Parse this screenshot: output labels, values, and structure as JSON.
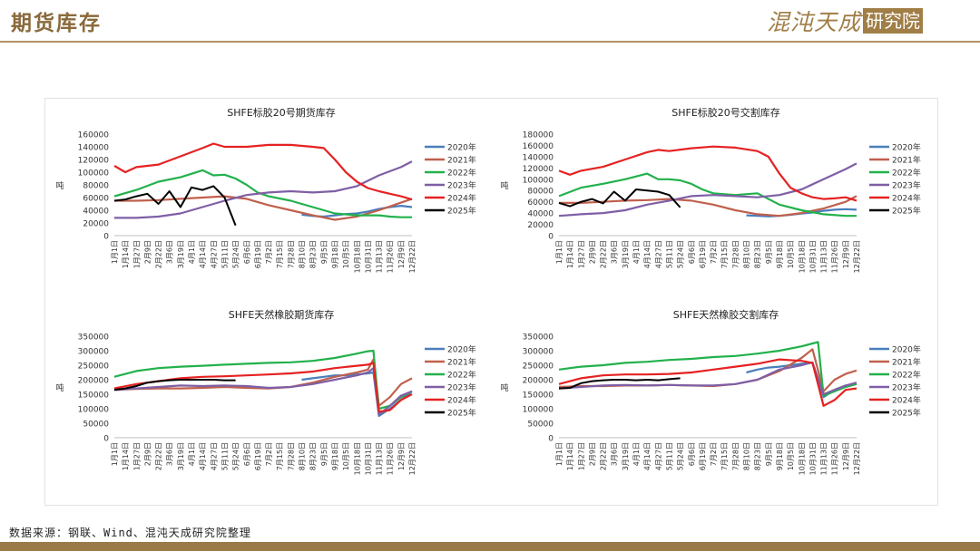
{
  "page": {
    "title": "期货库存",
    "logo_text": "混沌天成",
    "logo_box_text": "研究院",
    "source": "数据来源：钢联、Wind、混沌天成研究院整理"
  },
  "colors": {
    "2020年": "#4a7ebb",
    "2021年": "#c0604d",
    "2022年": "#22b14c",
    "2023年": "#7f5fa5",
    "2024年": "#e52222",
    "2025年": "#000000"
  },
  "chart_data": [
    {
      "type": "line",
      "title": "SHFE标胶20号期货库存",
      "ylabel": "吨",
      "ylim": [
        0,
        160000
      ],
      "yticks": [
        0,
        20000,
        40000,
        60000,
        80000,
        100000,
        120000,
        140000,
        160000
      ],
      "categories": [
        "1月1日",
        "1月14日",
        "1月27日",
        "2月9日",
        "2月22日",
        "3月6日",
        "3月19日",
        "4月1日",
        "4月14日",
        "4月27日",
        "5月11日",
        "5月24日",
        "6月6日",
        "6月19日",
        "7月2日",
        "7月15日",
        "7月28日",
        "8月10日",
        "8月23日",
        "9月5日",
        "9月18日",
        "10月5日",
        "10月18日",
        "10月31日",
        "11月13日",
        "11月26日",
        "12月9日",
        "12月22日"
      ],
      "series": [
        {
          "name": "2020年",
          "x": [
            17,
            18,
            19,
            20,
            21,
            22,
            23,
            24,
            25,
            26,
            27
          ],
          "values": [
            33000,
            31000,
            30000,
            32000,
            34000,
            35000,
            38000,
            42000,
            45000,
            47000,
            45000
          ]
        },
        {
          "name": "2021年",
          "x": [
            0,
            2,
            4,
            6,
            8,
            10,
            12,
            14,
            16,
            18,
            20,
            22,
            24,
            26,
            27
          ],
          "values": [
            55000,
            55000,
            56000,
            58000,
            60000,
            62000,
            58000,
            48000,
            40000,
            32000,
            25000,
            30000,
            40000,
            52000,
            58000
          ]
        },
        {
          "name": "2022年",
          "x": [
            0,
            2,
            4,
            6,
            8,
            9,
            10,
            11,
            12,
            13,
            14,
            16,
            18,
            20,
            22,
            24,
            25,
            26,
            27
          ],
          "values": [
            62000,
            72000,
            85000,
            92000,
            103000,
            95000,
            96000,
            90000,
            80000,
            68000,
            62000,
            55000,
            45000,
            35000,
            32000,
            32000,
            30000,
            29000,
            29000
          ]
        },
        {
          "name": "2023年",
          "x": [
            0,
            2,
            4,
            6,
            8,
            10,
            12,
            14,
            16,
            18,
            20,
            22,
            24,
            26,
            27
          ],
          "values": [
            28000,
            28000,
            30000,
            35000,
            45000,
            55000,
            64000,
            68000,
            70000,
            68000,
            70000,
            78000,
            95000,
            108000,
            117000
          ]
        },
        {
          "name": "2024年",
          "x": [
            0,
            1,
            2,
            4,
            6,
            8,
            9,
            10,
            12,
            14,
            16,
            18,
            19,
            20,
            21,
            22,
            23,
            24,
            25,
            26,
            27
          ],
          "values": [
            110000,
            100000,
            108000,
            112000,
            125000,
            138000,
            145000,
            140000,
            140000,
            143000,
            143000,
            140000,
            138000,
            120000,
            100000,
            85000,
            75000,
            70000,
            66000,
            62000,
            57000
          ]
        },
        {
          "name": "2025年",
          "x": [
            0,
            1,
            2,
            3,
            4,
            5,
            6,
            7,
            8,
            9,
            10,
            11
          ],
          "values": [
            55000,
            57000,
            62000,
            66000,
            50000,
            70000,
            45000,
            76000,
            72000,
            78000,
            60000,
            16000
          ]
        }
      ],
      "legend": "right"
    },
    {
      "type": "line",
      "title": "SHFE标胶20号交割库存",
      "ylabel": "吨",
      "ylim": [
        0,
        180000
      ],
      "yticks": [
        0,
        20000,
        40000,
        60000,
        80000,
        100000,
        120000,
        140000,
        160000,
        180000
      ],
      "categories": [
        "1月1日",
        "1月14日",
        "1月27日",
        "2月9日",
        "2月22日",
        "3月6日",
        "3月19日",
        "4月1日",
        "4月14日",
        "4月27日",
        "5月11日",
        "5月24日",
        "6月6日",
        "6月19日",
        "7月2日",
        "7月15日",
        "7月28日",
        "8月10日",
        "8月23日",
        "9月5日",
        "9月18日",
        "10月5日",
        "10月18日",
        "10月31日",
        "11月13日",
        "11月26日",
        "12月9日",
        "12月22日"
      ],
      "series": [
        {
          "name": "2020年",
          "x": [
            17,
            18,
            19,
            20,
            21,
            22,
            23,
            24,
            25,
            26,
            27
          ],
          "values": [
            36000,
            35000,
            34000,
            35000,
            37000,
            39000,
            41000,
            44000,
            46000,
            47000,
            46000
          ]
        },
        {
          "name": "2021年",
          "x": [
            0,
            2,
            4,
            6,
            8,
            10,
            12,
            14,
            16,
            18,
            20,
            22,
            24,
            26,
            27
          ],
          "values": [
            58000,
            58000,
            60000,
            62000,
            63000,
            65000,
            62000,
            55000,
            45000,
            38000,
            35000,
            40000,
            48000,
            60000,
            70000
          ]
        },
        {
          "name": "2022年",
          "x": [
            0,
            2,
            4,
            6,
            8,
            9,
            10,
            11,
            12,
            13,
            14,
            16,
            18,
            20,
            22,
            24,
            26,
            27
          ],
          "values": [
            70000,
            85000,
            92000,
            100000,
            110000,
            100000,
            100000,
            98000,
            92000,
            82000,
            75000,
            72000,
            75000,
            55000,
            45000,
            38000,
            35000,
            35000
          ]
        },
        {
          "name": "2023年",
          "x": [
            0,
            2,
            4,
            6,
            8,
            10,
            12,
            14,
            16,
            18,
            20,
            22,
            24,
            26,
            27
          ],
          "values": [
            35000,
            38000,
            40000,
            45000,
            55000,
            62000,
            70000,
            72000,
            70000,
            68000,
            72000,
            82000,
            100000,
            118000,
            128000
          ]
        },
        {
          "name": "2024年",
          "x": [
            0,
            1,
            2,
            4,
            6,
            8,
            9,
            10,
            12,
            14,
            16,
            18,
            19,
            20,
            21,
            22,
            23,
            24,
            25,
            26,
            27
          ],
          "values": [
            115000,
            108000,
            115000,
            122000,
            135000,
            148000,
            152000,
            150000,
            155000,
            158000,
            156000,
            150000,
            140000,
            110000,
            85000,
            75000,
            68000,
            65000,
            66000,
            68000,
            62000
          ]
        },
        {
          "name": "2025年",
          "x": [
            0,
            1,
            2,
            3,
            4,
            5,
            6,
            7,
            8,
            9,
            10,
            11
          ],
          "values": [
            58000,
            52000,
            60000,
            65000,
            57000,
            78000,
            62000,
            82000,
            80000,
            78000,
            72000,
            50000
          ]
        }
      ],
      "legend": "right"
    },
    {
      "type": "line",
      "title": "SHFE天然橡胶期货库存",
      "ylabel": "吨",
      "ylim": [
        0,
        350000
      ],
      "yticks": [
        0,
        50000,
        100000,
        150000,
        200000,
        250000,
        300000,
        350000
      ],
      "categories": [
        "1月1日",
        "1月14日",
        "1月27日",
        "2月9日",
        "2月22日",
        "3月6日",
        "3月19日",
        "4月1日",
        "4月14日",
        "4月27日",
        "5月11日",
        "5月24日",
        "6月6日",
        "6月19日",
        "7月2日",
        "7月15日",
        "7月28日",
        "8月10日",
        "8月23日",
        "9月5日",
        "9月18日",
        "10月5日",
        "10月18日",
        "10月31日",
        "11月13日",
        "11月26日",
        "12月9日",
        "12月22日"
      ],
      "series": [
        {
          "name": "2020年",
          "x": [
            17,
            18,
            19,
            20,
            21,
            22,
            23,
            23.5,
            24,
            25,
            26,
            27
          ],
          "values": [
            200000,
            205000,
            210000,
            215000,
            215000,
            218000,
            222000,
            225000,
            75000,
            100000,
            130000,
            160000
          ]
        },
        {
          "name": "2021年",
          "x": [
            0,
            2,
            4,
            6,
            8,
            10,
            12,
            14,
            16,
            18,
            20,
            22,
            23,
            23.5,
            24,
            25,
            26,
            27
          ],
          "values": [
            165000,
            168000,
            170000,
            170000,
            172000,
            175000,
            172000,
            170000,
            175000,
            190000,
            210000,
            225000,
            235000,
            270000,
            110000,
            140000,
            185000,
            205000
          ]
        },
        {
          "name": "2022年",
          "x": [
            0,
            2,
            4,
            6,
            8,
            10,
            12,
            14,
            16,
            18,
            20,
            22,
            23,
            23.5,
            24,
            25,
            26,
            27
          ],
          "values": [
            210000,
            230000,
            240000,
            245000,
            248000,
            252000,
            255000,
            258000,
            260000,
            265000,
            275000,
            290000,
            298000,
            300000,
            100000,
            110000,
            140000,
            160000
          ]
        },
        {
          "name": "2023年",
          "x": [
            0,
            2,
            4,
            6,
            8,
            10,
            12,
            14,
            16,
            18,
            20,
            22,
            23,
            23.5,
            24,
            25,
            26,
            27
          ],
          "values": [
            165000,
            170000,
            175000,
            180000,
            178000,
            180000,
            178000,
            172000,
            175000,
            185000,
            200000,
            215000,
            225000,
            240000,
            80000,
            110000,
            145000,
            160000
          ]
        },
        {
          "name": "2024年",
          "x": [
            0,
            2,
            4,
            6,
            8,
            10,
            12,
            14,
            16,
            18,
            20,
            22,
            23,
            23.5,
            24,
            25,
            26,
            27
          ],
          "values": [
            170000,
            185000,
            195000,
            205000,
            210000,
            212000,
            215000,
            218000,
            222000,
            228000,
            240000,
            248000,
            252000,
            258000,
            90000,
            95000,
            130000,
            150000
          ]
        },
        {
          "name": "2025年",
          "x": [
            0,
            1,
            2,
            3,
            4,
            5,
            6,
            7,
            8,
            9,
            10,
            11
          ],
          "values": [
            165000,
            170000,
            178000,
            190000,
            195000,
            198000,
            200000,
            200000,
            200000,
            200000,
            198000,
            198000
          ]
        }
      ],
      "legend": "right"
    },
    {
      "type": "line",
      "title": "SHFE天然橡胶交割库存",
      "ylabel": "吨",
      "ylim": [
        0,
        350000
      ],
      "yticks": [
        0,
        50000,
        100000,
        150000,
        200000,
        250000,
        300000,
        350000
      ],
      "categories": [
        "1月1日",
        "1月14日",
        "1月27日",
        "2月9日",
        "2月22日",
        "3月6日",
        "3月19日",
        "4月1日",
        "4月14日",
        "4月27日",
        "5月11日",
        "5月24日",
        "6月6日",
        "6月19日",
        "7月2日",
        "7月15日",
        "7月28日",
        "8月10日",
        "8月23日",
        "9月5日",
        "9月18日",
        "10月5日",
        "10月18日",
        "10月31日",
        "11月13日",
        "11月26日",
        "12月9日",
        "12月22日"
      ],
      "series": [
        {
          "name": "2020年",
          "x": [
            17,
            18,
            19,
            20,
            21,
            22,
            23,
            24,
            25,
            26,
            27
          ],
          "values": [
            225000,
            235000,
            242000,
            245000,
            250000,
            255000,
            258000,
            140000,
            165000,
            180000,
            185000
          ]
        },
        {
          "name": "2021年",
          "x": [
            0,
            2,
            4,
            6,
            8,
            10,
            12,
            14,
            16,
            18,
            20,
            22,
            23,
            24,
            25,
            26,
            27
          ],
          "values": [
            175000,
            178000,
            178000,
            180000,
            180000,
            182000,
            180000,
            178000,
            185000,
            200000,
            230000,
            275000,
            305000,
            160000,
            200000,
            220000,
            232000
          ]
        },
        {
          "name": "2022年",
          "x": [
            0,
            2,
            4,
            6,
            8,
            10,
            12,
            14,
            16,
            18,
            20,
            22,
            23,
            23.5,
            24,
            25,
            26,
            27
          ],
          "values": [
            235000,
            245000,
            250000,
            258000,
            262000,
            268000,
            272000,
            278000,
            282000,
            290000,
            300000,
            315000,
            325000,
            330000,
            145000,
            160000,
            175000,
            185000
          ]
        },
        {
          "name": "2023年",
          "x": [
            0,
            2,
            4,
            6,
            8,
            10,
            12,
            14,
            16,
            18,
            20,
            22,
            23,
            24,
            25,
            26,
            27
          ],
          "values": [
            170000,
            175000,
            180000,
            182000,
            180000,
            182000,
            180000,
            180000,
            185000,
            200000,
            235000,
            250000,
            260000,
            150000,
            165000,
            180000,
            190000
          ]
        },
        {
          "name": "2024年",
          "x": [
            0,
            2,
            4,
            6,
            8,
            10,
            12,
            14,
            16,
            18,
            20,
            22,
            23,
            24,
            25,
            26,
            27
          ],
          "values": [
            185000,
            205000,
            215000,
            218000,
            218000,
            220000,
            225000,
            235000,
            245000,
            255000,
            270000,
            265000,
            258000,
            110000,
            130000,
            165000,
            170000
          ]
        },
        {
          "name": "2025年",
          "x": [
            0,
            1,
            2,
            3,
            4,
            5,
            6,
            7,
            8,
            9,
            10,
            11
          ],
          "values": [
            170000,
            172000,
            188000,
            195000,
            198000,
            200000,
            200000,
            198000,
            200000,
            198000,
            202000,
            205000
          ]
        }
      ],
      "legend": "right"
    }
  ]
}
